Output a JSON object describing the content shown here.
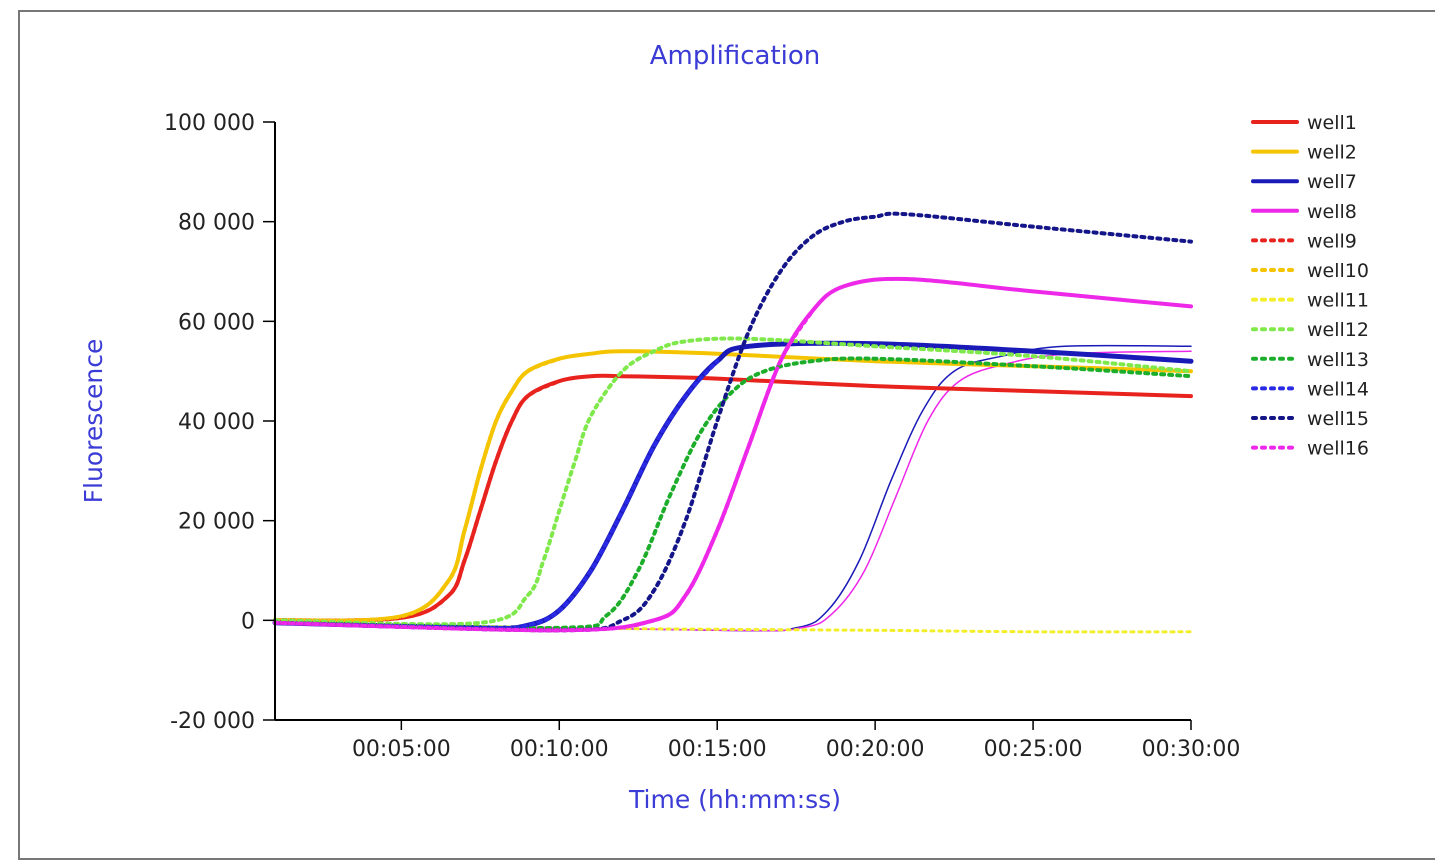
{
  "chart_data": {
    "type": "line",
    "title": "Amplification",
    "xlabel": "Time (hh:mm:ss)",
    "ylabel": "Fluorescence",
    "xlim": [
      60,
      1800
    ],
    "ylim": [
      -20000,
      100000
    ],
    "x_ticks": [
      {
        "value": 300,
        "label": "00:05:00"
      },
      {
        "value": 600,
        "label": "00:10:00"
      },
      {
        "value": 900,
        "label": "00:15:00"
      },
      {
        "value": 1200,
        "label": "00:20:00"
      },
      {
        "value": 1500,
        "label": "00:25:00"
      },
      {
        "value": 1800,
        "label": "00:30:00"
      }
    ],
    "y_ticks": [
      {
        "value": 100000,
        "label": "100 000"
      },
      {
        "value": 80000,
        "label": "80 000"
      },
      {
        "value": 60000,
        "label": "60 000"
      },
      {
        "value": 40000,
        "label": "40 000"
      },
      {
        "value": 20000,
        "label": "20 000"
      },
      {
        "value": 0,
        "label": "0"
      },
      {
        "value": -20000,
        "label": "-20 000"
      }
    ],
    "grid": false,
    "legend_position": "right",
    "series": [
      {
        "name": "well1",
        "color": "#e8231e",
        "dash": "solid",
        "width": 4,
        "x": [
          60,
          300,
          390,
          420,
          450,
          480,
          510,
          540,
          600,
          660,
          720,
          900,
          1200,
          1500,
          1800
        ],
        "y": [
          0,
          500,
          5000,
          12000,
          22000,
          32000,
          40000,
          45000,
          48000,
          49000,
          49000,
          48500,
          47000,
          46000,
          45000
        ]
      },
      {
        "name": "well2",
        "color": "#f5c400",
        "dash": "solid",
        "width": 4,
        "x": [
          60,
          300,
          390,
          420,
          450,
          480,
          510,
          540,
          600,
          660,
          720,
          900,
          1200,
          1500,
          1800
        ],
        "y": [
          0,
          800,
          8000,
          18000,
          30000,
          40000,
          46000,
          50000,
          52500,
          53500,
          54000,
          53500,
          52000,
          51000,
          50000
        ]
      },
      {
        "name": "well7",
        "color": "#1a1ab8",
        "dash": "solid",
        "width": 5,
        "x": [
          60,
          450,
          540,
          600,
          660,
          720,
          780,
          840,
          900,
          960,
          1200,
          1500,
          1800
        ],
        "y": [
          -500,
          -1500,
          -1000,
          2000,
          10000,
          22000,
          35000,
          45000,
          52000,
          55000,
          55500,
          54000,
          52000
        ]
      },
      {
        "name": "well8",
        "color": "#ee28e8",
        "dash": "solid",
        "width": 4,
        "x": [
          60,
          600,
          780,
          840,
          900,
          960,
          1020,
          1080,
          1140,
          1260,
          1500,
          1800
        ],
        "y": [
          -500,
          -2000,
          0,
          5000,
          18000,
          35000,
          52000,
          62000,
          67000,
          68500,
          66000,
          63000
        ]
      },
      {
        "name": "well9",
        "color": "#e8231e",
        "dash": "dotted",
        "width": 4,
        "x": [
          60,
          300,
          390,
          420,
          450,
          480,
          510,
          540,
          600
        ],
        "y": [
          0,
          500,
          5000,
          12000,
          22000,
          32000,
          40000,
          45000,
          48000
        ]
      },
      {
        "name": "well10",
        "color": "#f5c400",
        "dash": "dotted",
        "width": 4,
        "x": [
          60,
          300,
          390,
          420,
          450,
          480,
          510,
          540,
          600
        ],
        "y": [
          0,
          800,
          8000,
          18000,
          30000,
          40000,
          46000,
          50000,
          52500
        ]
      },
      {
        "name": "well11",
        "color": "#f2ef2a",
        "dash": "dotted",
        "width": 3,
        "x": [
          60,
          600,
          900,
          1200,
          1500,
          1800
        ],
        "y": [
          -500,
          -1500,
          -1800,
          -2000,
          -2300,
          -2300
        ]
      },
      {
        "name": "well12",
        "color": "#7fe84a",
        "dash": "dotted",
        "width": 4,
        "x": [
          60,
          450,
          540,
          570,
          600,
          630,
          660,
          720,
          780,
          840,
          960,
          1200,
          1500,
          1800
        ],
        "y": [
          0,
          -500,
          5000,
          12000,
          22000,
          32000,
          41000,
          50000,
          54000,
          56000,
          56500,
          55000,
          53000,
          50000
        ]
      },
      {
        "name": "well13",
        "color": "#1cae2a",
        "dash": "dotted",
        "width": 4,
        "x": [
          60,
          600,
          690,
          750,
          810,
          870,
          930,
          990,
          1080,
          1200,
          1500,
          1800
        ],
        "y": [
          -500,
          -1500,
          1000,
          10000,
          25000,
          38000,
          46000,
          50000,
          52000,
          52500,
          51000,
          49000
        ]
      },
      {
        "name": "well14",
        "color": "#2a2ae6",
        "dash": "dotted",
        "width": 4,
        "x": [
          60,
          450,
          540,
          600,
          660,
          720,
          780,
          840,
          900
        ],
        "y": [
          -500,
          -1500,
          -1000,
          2000,
          10000,
          22000,
          35000,
          45000,
          52000
        ]
      },
      {
        "name": "well15",
        "color": "#15158a",
        "dash": "dotted",
        "width": 4,
        "x": [
          60,
          600,
          720,
          780,
          840,
          900,
          960,
          1020,
          1080,
          1140,
          1200,
          1260,
          1500,
          1800
        ],
        "y": [
          -500,
          -2000,
          0,
          6000,
          20000,
          40000,
          58000,
          70000,
          77000,
          80000,
          81000,
          81500,
          79000,
          76000
        ]
      },
      {
        "name": "well16",
        "color": "#ee28e8",
        "dash": "dotted",
        "width": 4,
        "x": [
          60,
          600,
          780,
          840,
          900,
          960,
          1020,
          1080
        ],
        "y": [
          -500,
          -2000,
          0,
          5000,
          18000,
          35000,
          52000,
          62000
        ]
      },
      {
        "name": "",
        "color": "#1a1ab8",
        "dash": "solid",
        "width": 1.5,
        "x": [
          60,
          900,
          1050,
          1110,
          1170,
          1230,
          1290,
          1350,
          1440,
          1560,
          1800
        ],
        "y": [
          -500,
          -2000,
          -1500,
          2000,
          12000,
          28000,
          42000,
          50000,
          53000,
          55000,
          55000
        ]
      },
      {
        "name": "",
        "color": "#ee28e8",
        "dash": "solid",
        "width": 1.5,
        "x": [
          60,
          900,
          1060,
          1120,
          1180,
          1240,
          1300,
          1360,
          1450,
          1570,
          1800
        ],
        "y": [
          -500,
          -2000,
          -1500,
          1500,
          10000,
          25000,
          40000,
          48000,
          51500,
          53500,
          54000
        ]
      }
    ]
  }
}
